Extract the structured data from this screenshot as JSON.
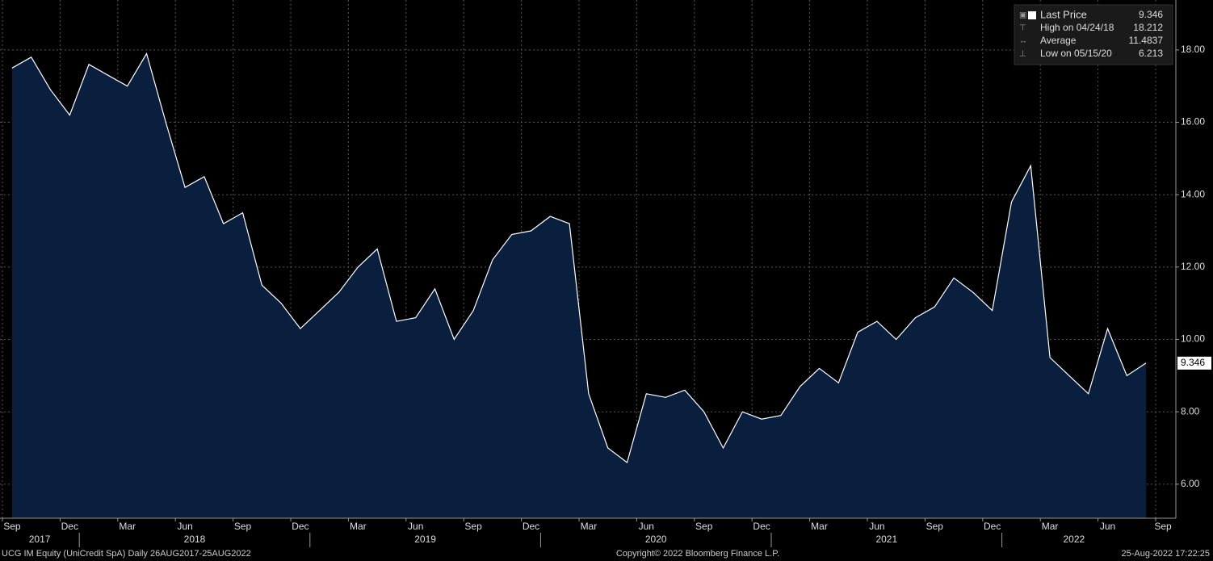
{
  "chart_data": {
    "type": "area",
    "series": [
      {
        "name": "Last Price",
        "color": "#ffffff",
        "fill": "#0a1f3d",
        "x": [
          "2017-09",
          "2017-10",
          "2017-11",
          "2017-12",
          "2018-01",
          "2018-02",
          "2018-03",
          "2018-04",
          "2018-05",
          "2018-06",
          "2018-07",
          "2018-08",
          "2018-09",
          "2018-10",
          "2018-11",
          "2018-12",
          "2019-01",
          "2019-02",
          "2019-03",
          "2019-04",
          "2019-05",
          "2019-06",
          "2019-07",
          "2019-08",
          "2019-09",
          "2019-10",
          "2019-11",
          "2019-12",
          "2020-01",
          "2020-02",
          "2020-03",
          "2020-04",
          "2020-05",
          "2020-06",
          "2020-07",
          "2020-08",
          "2020-09",
          "2020-10",
          "2020-11",
          "2020-12",
          "2021-01",
          "2021-02",
          "2021-03",
          "2021-04",
          "2021-05",
          "2021-06",
          "2021-07",
          "2021-08",
          "2021-09",
          "2021-10",
          "2021-11",
          "2021-12",
          "2022-01",
          "2022-02",
          "2022-03",
          "2022-04",
          "2022-05",
          "2022-06",
          "2022-07",
          "2022-08"
        ],
        "values": [
          17.5,
          17.8,
          16.9,
          16.2,
          17.6,
          17.3,
          17.0,
          17.9,
          16.0,
          14.2,
          14.5,
          13.2,
          13.5,
          11.5,
          11.0,
          10.3,
          10.8,
          11.3,
          12.0,
          12.5,
          10.5,
          10.6,
          11.4,
          10.0,
          10.8,
          12.2,
          12.9,
          13.0,
          13.4,
          13.2,
          8.5,
          7.0,
          6.6,
          8.5,
          8.4,
          8.6,
          8.0,
          7.0,
          8.0,
          7.8,
          7.9,
          8.7,
          9.2,
          8.8,
          10.2,
          10.5,
          10.0,
          10.6,
          10.9,
          11.7,
          11.3,
          10.8,
          13.8,
          14.8,
          9.5,
          9.0,
          8.5,
          10.3,
          9.0,
          9.346
        ]
      }
    ],
    "ylim": [
      5.06,
      19.38
    ],
    "yticks": [
      {
        "value": 6,
        "label": "6.00"
      },
      {
        "value": 8,
        "label": "8.00"
      },
      {
        "value": 10,
        "label": "10.00"
      },
      {
        "value": 12,
        "label": "12.00"
      },
      {
        "value": 14,
        "label": "14.00"
      },
      {
        "value": 16,
        "label": "16.00"
      },
      {
        "value": 18,
        "label": "18.00"
      }
    ],
    "xticks": [
      {
        "value": "2017-09",
        "label": "Sep"
      },
      {
        "value": "2017-12",
        "label": "Dec"
      },
      {
        "value": "2018-03",
        "label": "Mar"
      },
      {
        "value": "2018-06",
        "label": "Jun"
      },
      {
        "value": "2018-09",
        "label": "Sep"
      },
      {
        "value": "2018-12",
        "label": "Dec"
      },
      {
        "value": "2019-03",
        "label": "Mar"
      },
      {
        "value": "2019-06",
        "label": "Jun"
      },
      {
        "value": "2019-09",
        "label": "Sep"
      },
      {
        "value": "2019-12",
        "label": "Dec"
      },
      {
        "value": "2020-03",
        "label": "Mar"
      },
      {
        "value": "2020-06",
        "label": "Jun"
      },
      {
        "value": "2020-09",
        "label": "Sep"
      },
      {
        "value": "2020-12",
        "label": "Dec"
      },
      {
        "value": "2021-03",
        "label": "Mar"
      },
      {
        "value": "2021-06",
        "label": "Jun"
      },
      {
        "value": "2021-09",
        "label": "Sep"
      },
      {
        "value": "2021-12",
        "label": "Dec"
      },
      {
        "value": "2022-03",
        "label": "Mar"
      },
      {
        "value": "2022-06",
        "label": "Jun"
      },
      {
        "value": "2022-09",
        "label": "Sep"
      }
    ],
    "years": [
      "2017",
      "2018",
      "2019",
      "2020",
      "2021",
      "2022"
    ],
    "grid": true,
    "legend": {
      "position": "top-right",
      "items": [
        {
          "label": "Last Price",
          "value": "9.346"
        },
        {
          "label": "High on 04/24/18",
          "value": "18.212"
        },
        {
          "label": "Average",
          "value": "11.4837"
        },
        {
          "label": "Low on 05/15/20",
          "value": "6.213"
        }
      ]
    },
    "footer": {
      "left": "UCG IM Equity (UniCredit SpA)  Daily 26AUG2017-25AUG2022",
      "center": "Copyright© 2022 Bloomberg Finance L.P.",
      "right": "25-Aug-2022 17:22:25"
    }
  }
}
